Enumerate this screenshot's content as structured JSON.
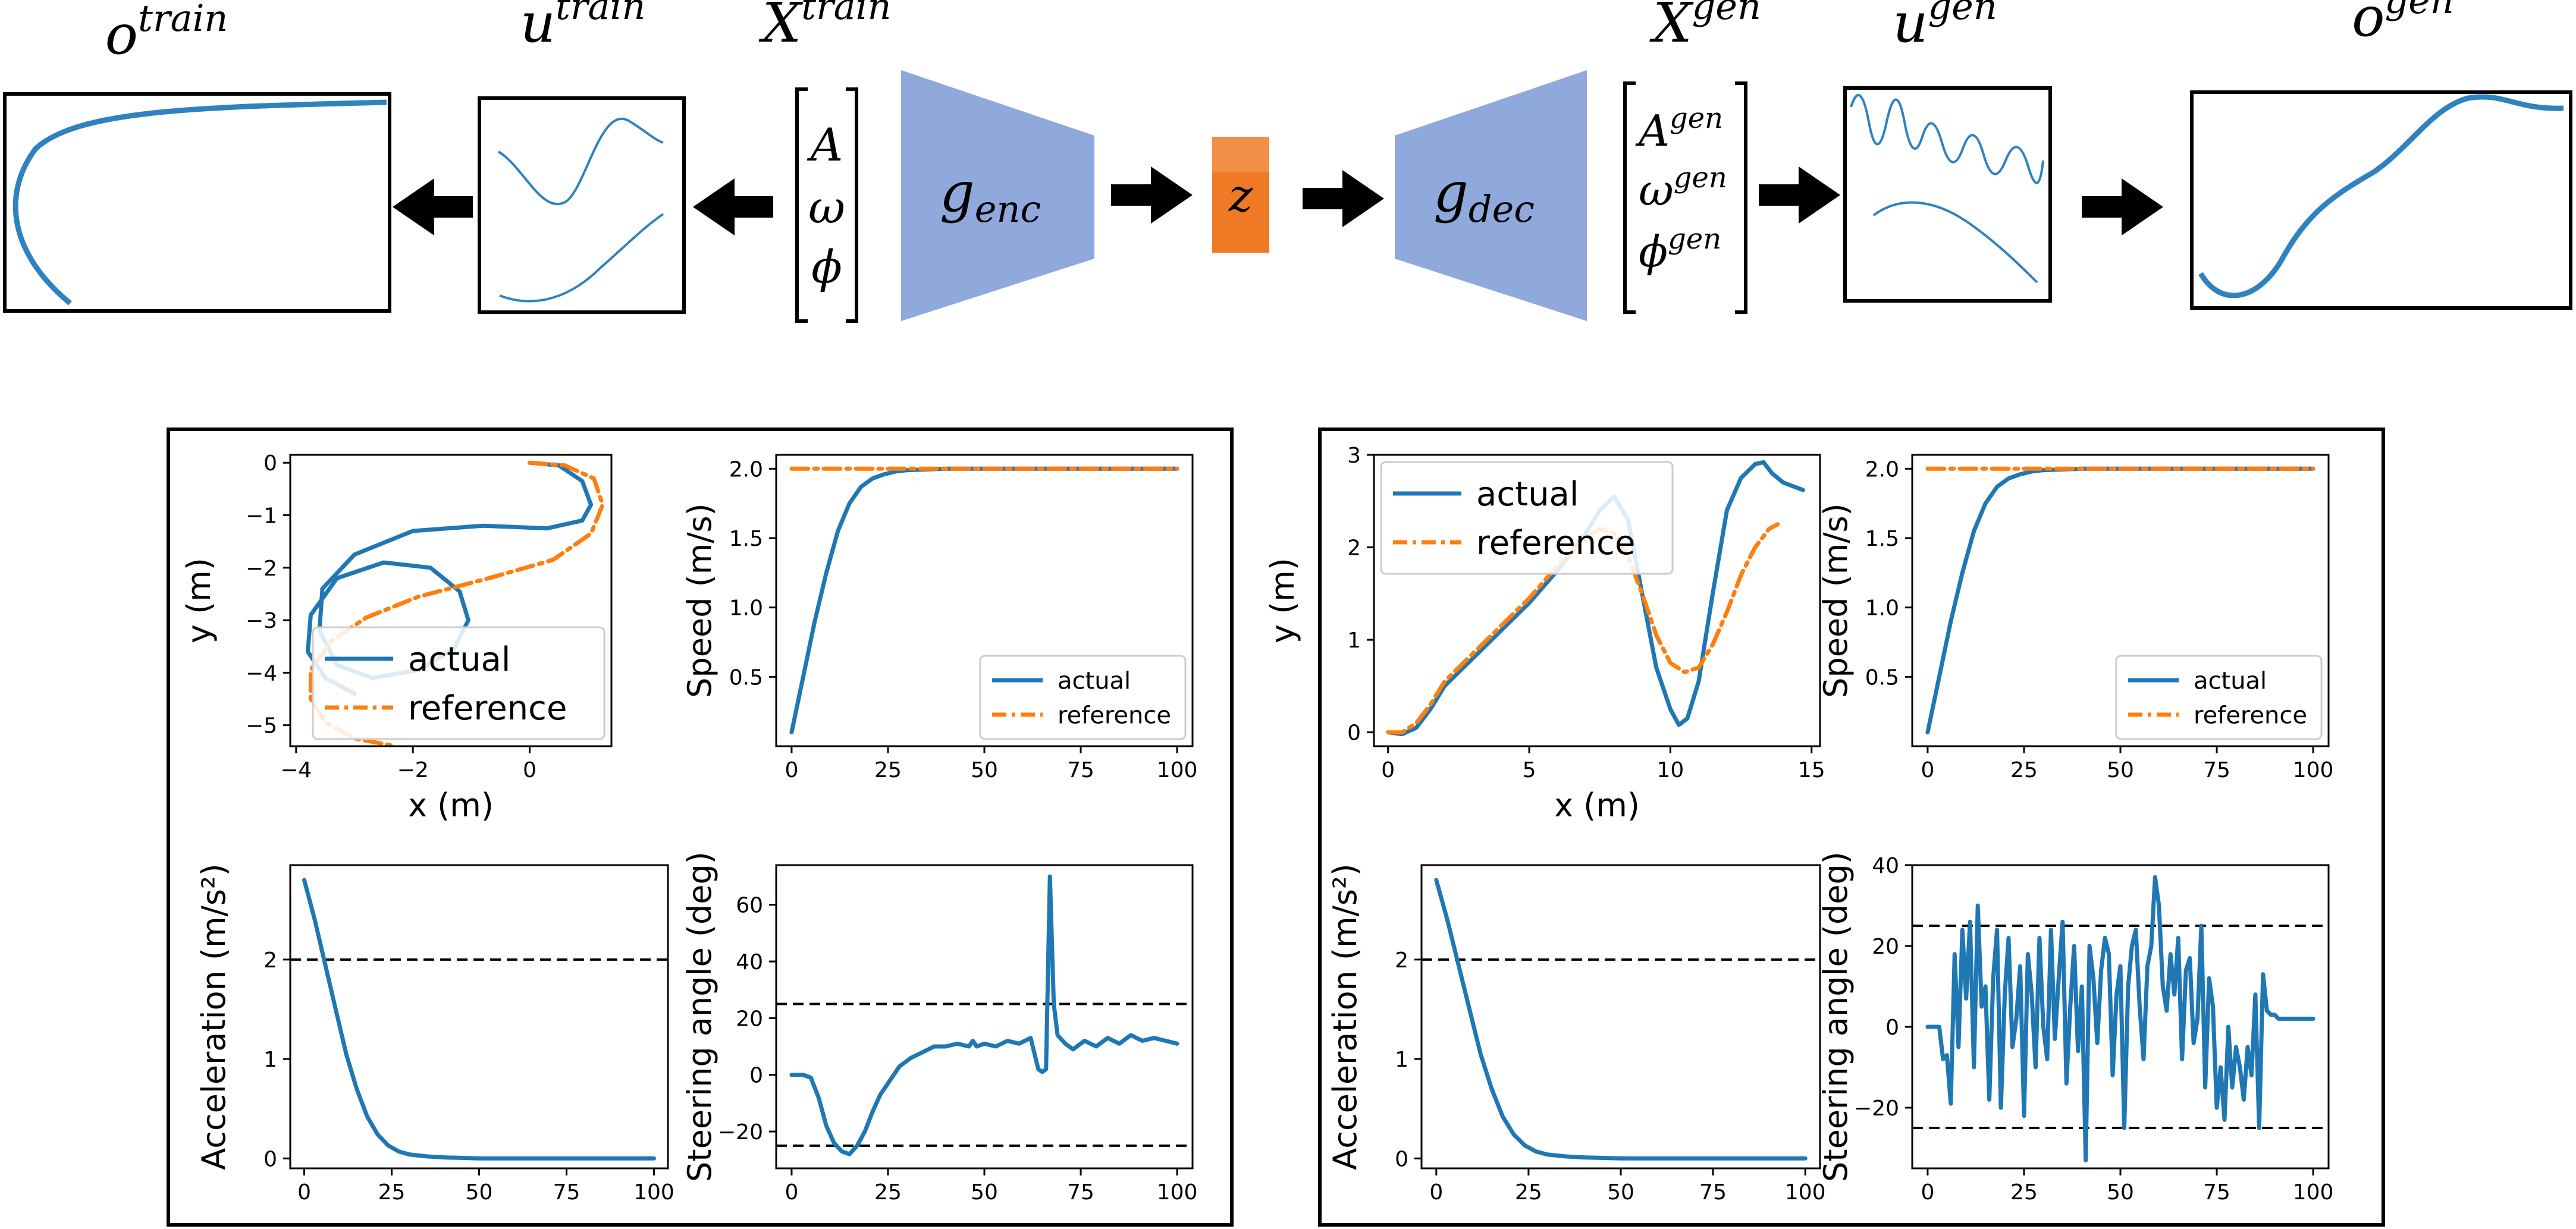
{
  "diagram": {
    "symbols": {
      "o_train": {
        "base": "o",
        "sup": "train"
      },
      "u_train": {
        "base": "u",
        "sup": "train"
      },
      "X_train": {
        "base": "X",
        "sup": "train"
      },
      "X_gen": {
        "base": "X",
        "sup": "gen"
      },
      "u_gen": {
        "base": "u",
        "sup": "gen"
      },
      "o_gen": {
        "base": "o",
        "sup": "gen"
      }
    },
    "train_params": [
      "A",
      "ω",
      "ϕ"
    ],
    "gen_params": [
      {
        "base": "A",
        "sup": "gen"
      },
      {
        "base": "ω",
        "sup": "gen"
      },
      {
        "base": "ϕ",
        "sup": "gen"
      }
    ],
    "encoder": {
      "base": "g",
      "sub": "enc"
    },
    "decoder": {
      "base": "g",
      "sub": "dec"
    },
    "latent": "z",
    "colors": {
      "network": "#8fa9dc",
      "latent": "#ee7a26",
      "latent_light": "#f4a163",
      "line": "#2f82c0",
      "arrow": "#000000"
    }
  },
  "panels": [
    {
      "name": "left",
      "trajectory": {
        "type": "line",
        "xlabel": "x (m)",
        "ylabel": "y (m)",
        "xlim": [
          -4.1,
          1.4
        ],
        "ylim": [
          -5.4,
          0.15
        ],
        "xticks": [
          -4,
          -2,
          0
        ],
        "yticks": [
          0,
          -1,
          -2,
          -3,
          -4,
          -5
        ],
        "legend": {
          "position": "lower-right",
          "entries": [
            "actual",
            "reference"
          ]
        },
        "series": [
          {
            "name": "actual",
            "style": "solid",
            "color": "#1f77b4",
            "x": [
              0,
              0.5,
              0.9,
              1.05,
              0.9,
              0.3,
              -0.8,
              -2.0,
              -3.0,
              -3.55,
              -3.6,
              -3.3,
              -2.7,
              -1.9,
              -1.3,
              -1.05,
              -1.2,
              -1.7,
              -2.5,
              -3.3,
              -3.75,
              -3.8,
              -3.5,
              -3.0
            ],
            "y": [
              0,
              -0.05,
              -0.35,
              -0.8,
              -1.1,
              -1.25,
              -1.2,
              -1.3,
              -1.75,
              -2.4,
              -3.2,
              -3.85,
              -4.1,
              -3.95,
              -3.55,
              -3.0,
              -2.45,
              -2.0,
              -1.9,
              -2.2,
              -2.9,
              -3.6,
              -4.1,
              -4.4
            ]
          },
          {
            "name": "reference",
            "style": "dashdot",
            "color": "#ff7f0e",
            "x": [
              0,
              0.6,
              1.1,
              1.25,
              1.05,
              0.4,
              -0.7,
              -1.9,
              -2.8,
              -3.4,
              -3.75,
              -3.75,
              -3.5,
              -3.0,
              -2.3
            ],
            "y": [
              0,
              -0.05,
              -0.3,
              -0.8,
              -1.35,
              -1.85,
              -2.2,
              -2.55,
              -2.95,
              -3.4,
              -3.95,
              -4.5,
              -4.95,
              -5.25,
              -5.4
            ]
          }
        ]
      },
      "speed": {
        "type": "line",
        "ylabel": "Speed (m/s)",
        "xlim": [
          -4,
          104
        ],
        "ylim": [
          0.0,
          2.1
        ],
        "xticks": [
          0,
          25,
          50,
          75,
          100
        ],
        "yticks": [
          0.5,
          1.0,
          1.5,
          2.0
        ],
        "legend": {
          "position": "lower-right",
          "entries": [
            "actual",
            "reference"
          ]
        },
        "series": [
          {
            "name": "actual",
            "style": "solid",
            "color": "#1f77b4",
            "x": [
              0,
              3,
              6,
              9,
              12,
              15,
              18,
              21,
              24,
              27,
              30,
              35,
              40,
              50,
              60,
              80,
              100
            ],
            "y": [
              0.1,
              0.5,
              0.9,
              1.25,
              1.55,
              1.75,
              1.87,
              1.93,
              1.96,
              1.98,
              1.99,
              1.995,
              2.0,
              2.0,
              2.0,
              2.0,
              2.0
            ]
          },
          {
            "name": "reference",
            "style": "dashdot",
            "color": "#ff7f0e",
            "x": [
              0,
              100
            ],
            "y": [
              2.0,
              2.0
            ]
          }
        ]
      },
      "acceleration": {
        "type": "line",
        "ylabel": "Acceleration (m/s²)",
        "xlim": [
          -4,
          104
        ],
        "ylim": [
          -0.1,
          2.95
        ],
        "xticks": [
          0,
          25,
          50,
          75,
          100
        ],
        "yticks": [
          0,
          1,
          2
        ],
        "hlines": [
          2
        ],
        "series": [
          {
            "name": "actual",
            "style": "solid",
            "color": "#1f77b4",
            "x": [
              0,
              3,
              6,
              9,
              12,
              15,
              18,
              21,
              24,
              27,
              30,
              35,
              40,
              50,
              60,
              80,
              100
            ],
            "y": [
              2.8,
              2.4,
              1.95,
              1.5,
              1.05,
              0.7,
              0.42,
              0.24,
              0.13,
              0.07,
              0.04,
              0.02,
              0.01,
              0,
              0,
              0,
              0
            ]
          }
        ]
      },
      "steering": {
        "type": "line",
        "ylabel": "Steering angle (deg)",
        "xlim": [
          -4,
          104
        ],
        "ylim": [
          -33,
          74
        ],
        "xticks": [
          0,
          25,
          50,
          75,
          100
        ],
        "yticks": [
          -20,
          0,
          20,
          40,
          60
        ],
        "hlines": [
          25,
          -25
        ],
        "series": [
          {
            "name": "actual",
            "style": "solid",
            "color": "#1f77b4",
            "x": [
              0,
              3,
              5,
              7,
              9,
              11,
              13,
              15,
              17,
              19,
              21,
              23,
              25,
              28,
              31,
              34,
              37,
              40,
              43,
              46,
              47,
              48,
              50,
              53,
              56,
              59,
              62,
              64,
              65,
              66,
              67,
              68,
              69,
              71,
              73,
              76,
              79,
              82,
              85,
              88,
              91,
              94,
              97,
              100
            ],
            "y": [
              0,
              0,
              -1,
              -8,
              -18,
              -24,
              -27,
              -28,
              -25,
              -20,
              -13,
              -7,
              -3,
              3,
              6,
              8,
              10,
              10,
              11,
              10,
              12,
              10,
              11,
              10,
              12,
              11,
              13,
              2,
              1,
              2,
              70,
              25,
              14,
              11,
              9,
              12,
              10,
              13,
              11,
              14,
              12,
              13,
              12,
              11
            ]
          }
        ]
      }
    },
    {
      "name": "right",
      "trajectory": {
        "type": "line",
        "xlabel": "x (m)",
        "ylabel": "y (m)",
        "xlim": [
          -0.5,
          15.3
        ],
        "ylim": [
          -0.15,
          3.0
        ],
        "xticks": [
          0,
          5,
          10,
          15
        ],
        "yticks": [
          0,
          1,
          2,
          3
        ],
        "legend": {
          "position": "top-left",
          "entries": [
            "actual",
            "reference"
          ]
        },
        "series": [
          {
            "name": "actual",
            "style": "solid",
            "color": "#1f77b4",
            "x": [
              0,
              0.5,
              1.0,
              1.5,
              2,
              3,
              4,
              5,
              6,
              7,
              7.5,
              8,
              8.5,
              9,
              9.5,
              10,
              10.3,
              10.6,
              11,
              11.5,
              12,
              12.5,
              13,
              13.3,
              13.6,
              14,
              14.7
            ],
            "y": [
              0,
              -0.02,
              0.05,
              0.25,
              0.5,
              0.8,
              1.1,
              1.4,
              1.75,
              2.15,
              2.4,
              2.55,
              2.3,
              1.5,
              0.7,
              0.25,
              0.08,
              0.15,
              0.55,
              1.5,
              2.4,
              2.75,
              2.9,
              2.92,
              2.8,
              2.7,
              2.62
            ]
          },
          {
            "name": "reference",
            "style": "dashdot",
            "color": "#ff7f0e",
            "x": [
              0,
              0.5,
              1.0,
              1.5,
              2,
              3,
              4,
              5,
              6,
              7,
              7.5,
              8,
              8.5,
              9,
              9.5,
              10,
              10.5,
              11,
              11.5,
              12,
              12.5,
              13,
              13.5,
              13.8
            ],
            "y": [
              0,
              0,
              0.1,
              0.3,
              0.55,
              0.85,
              1.15,
              1.45,
              1.8,
              2.1,
              2.2,
              2.15,
              1.9,
              1.5,
              1.05,
              0.75,
              0.65,
              0.7,
              0.95,
              1.3,
              1.7,
              2.0,
              2.2,
              2.25
            ]
          }
        ]
      },
      "speed": {
        "type": "line",
        "ylabel": "Speed (m/s)",
        "xlim": [
          -4,
          104
        ],
        "ylim": [
          0.0,
          2.1
        ],
        "xticks": [
          0,
          25,
          50,
          75,
          100
        ],
        "yticks": [
          0.5,
          1.0,
          1.5,
          2.0
        ],
        "legend": {
          "position": "lower-right",
          "entries": [
            "actual",
            "reference"
          ]
        },
        "series": [
          {
            "name": "actual",
            "style": "solid",
            "color": "#1f77b4",
            "x": [
              0,
              3,
              6,
              9,
              12,
              15,
              18,
              21,
              24,
              27,
              30,
              35,
              40,
              50,
              60,
              80,
              100
            ],
            "y": [
              0.1,
              0.5,
              0.9,
              1.25,
              1.55,
              1.75,
              1.87,
              1.93,
              1.96,
              1.98,
              1.99,
              1.995,
              2.0,
              2.0,
              2.0,
              2.0,
              2.0
            ]
          },
          {
            "name": "reference",
            "style": "dashdot",
            "color": "#ff7f0e",
            "x": [
              0,
              100
            ],
            "y": [
              2.0,
              2.0
            ]
          }
        ]
      },
      "acceleration": {
        "type": "line",
        "ylabel": "Acceleration (m/s²)",
        "xlim": [
          -4,
          104
        ],
        "ylim": [
          -0.1,
          2.95
        ],
        "xticks": [
          0,
          25,
          50,
          75,
          100
        ],
        "yticks": [
          0,
          1,
          2
        ],
        "hlines": [
          2
        ],
        "series": [
          {
            "name": "actual",
            "style": "solid",
            "color": "#1f77b4",
            "x": [
              0,
              3,
              6,
              9,
              12,
              15,
              18,
              21,
              24,
              27,
              30,
              35,
              40,
              50,
              60,
              80,
              100
            ],
            "y": [
              2.8,
              2.4,
              1.95,
              1.5,
              1.05,
              0.7,
              0.42,
              0.24,
              0.13,
              0.07,
              0.04,
              0.02,
              0.01,
              0,
              0,
              0,
              0
            ]
          }
        ]
      },
      "steering": {
        "type": "line",
        "ylabel": "Steering angle (deg)",
        "xlim": [
          -4,
          104
        ],
        "ylim": [
          -35,
          40
        ],
        "xticks": [
          0,
          25,
          50,
          75,
          100
        ],
        "yticks": [
          -20,
          0,
          20,
          40
        ],
        "hlines": [
          25,
          -25
        ],
        "series": [
          {
            "name": "actual",
            "style": "solid",
            "color": "#1f77b4",
            "x": [
              0,
              3,
              4,
              5,
              6,
              7,
              8,
              9,
              10,
              11,
              12,
              13,
              14,
              15,
              16,
              17,
              18,
              19,
              20,
              21,
              22,
              23,
              24,
              25,
              26,
              27,
              28,
              29,
              30,
              31,
              32,
              33,
              34,
              35,
              36,
              37,
              38,
              39,
              40,
              41,
              42,
              43,
              44,
              45,
              46,
              47,
              48,
              49,
              50,
              51,
              52,
              53,
              54,
              55,
              56,
              57,
              58,
              59,
              60,
              61,
              62,
              63,
              64,
              65,
              66,
              67,
              68,
              69,
              70,
              71,
              72,
              73,
              74,
              75,
              76,
              77,
              78,
              79,
              80,
              81,
              82,
              83,
              84,
              85,
              86,
              87,
              88,
              89,
              90,
              91,
              92,
              93,
              94,
              95,
              96,
              97,
              98,
              99,
              100
            ],
            "y": [
              0,
              0,
              -8,
              -7,
              -19,
              18,
              -5,
              24,
              7,
              26,
              -10,
              30,
              5,
              10,
              -18,
              12,
              24,
              -20,
              8,
              22,
              -5,
              2,
              15,
              -22,
              18,
              8,
              -10,
              22,
              0,
              -8,
              24,
              -3,
              12,
              26,
              -14,
              5,
              20,
              -6,
              10,
              -33,
              20,
              12,
              -4,
              14,
              22,
              18,
              -12,
              8,
              15,
              -25,
              10,
              20,
              24,
              5,
              -8,
              15,
              20,
              37,
              30,
              10,
              4,
              18,
              8,
              22,
              -8,
              14,
              17,
              -4,
              2,
              25,
              -15,
              12,
              5,
              -20,
              -10,
              -23,
              0,
              -15,
              -5,
              -10,
              -18,
              -5,
              -12,
              8,
              -25,
              13,
              4,
              3,
              3,
              2,
              2,
              2,
              2,
              2,
              2,
              2,
              2,
              2,
              2
            ]
          }
        ]
      }
    }
  ]
}
